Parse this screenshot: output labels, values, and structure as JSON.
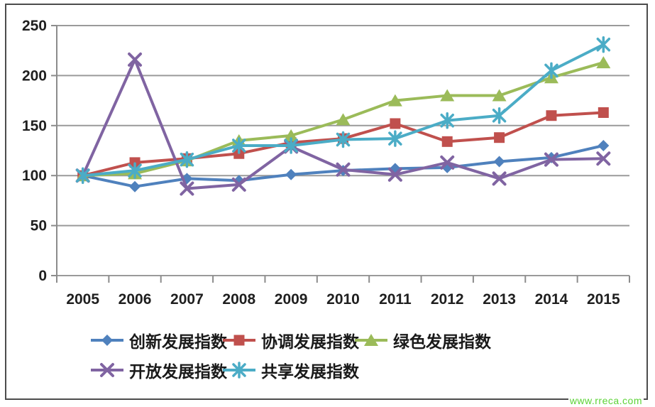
{
  "watermark": "www.rreca.com",
  "ui": {
    "background": "#ffffff",
    "frame_border": "#4c4c4c",
    "gridline_color": "#9a9a9a",
    "axis_color": "#8c8c8c",
    "tick_label_color": "#1f1f1f",
    "legend_text_color": "#1a1a1a",
    "watermark_color": "#5cd337"
  },
  "chart_data": {
    "type": "line",
    "title": "",
    "xlabel": "",
    "ylabel": "",
    "x": [
      "2005",
      "2006",
      "2007",
      "2008",
      "2009",
      "2010",
      "2011",
      "2012",
      "2013",
      "2014",
      "2015"
    ],
    "yticks": [
      "0",
      "50",
      "100",
      "150",
      "200",
      "250"
    ],
    "ylim": [
      0,
      250
    ],
    "grid": true,
    "legend_position": "bottom",
    "series": [
      {
        "name": "创新发展指数",
        "color": "#4F81BD",
        "marker": "diamond",
        "values": [
          100,
          89,
          97,
          95,
          101,
          105,
          107,
          108,
          114,
          118,
          130
        ]
      },
      {
        "name": "协调发展指数",
        "color": "#C0504D",
        "marker": "square",
        "values": [
          100,
          113,
          117,
          122,
          133,
          137,
          152,
          134,
          138,
          160,
          163
        ]
      },
      {
        "name": "绿色发展指数",
        "color": "#9BBB59",
        "marker": "triangle",
        "values": [
          100,
          102,
          115,
          135,
          140,
          156,
          175,
          180,
          180,
          198,
          213
        ]
      },
      {
        "name": "开放发展指数",
        "color": "#8064A2",
        "marker": "x",
        "values": [
          100,
          216,
          87,
          91,
          129,
          106,
          101,
          113,
          97,
          116,
          117
        ]
      },
      {
        "name": "共享发展指数",
        "color": "#4BACC6",
        "marker": "asterisk",
        "values": [
          100,
          105,
          116,
          130,
          130,
          136,
          137,
          155,
          160,
          205,
          231
        ]
      }
    ]
  }
}
